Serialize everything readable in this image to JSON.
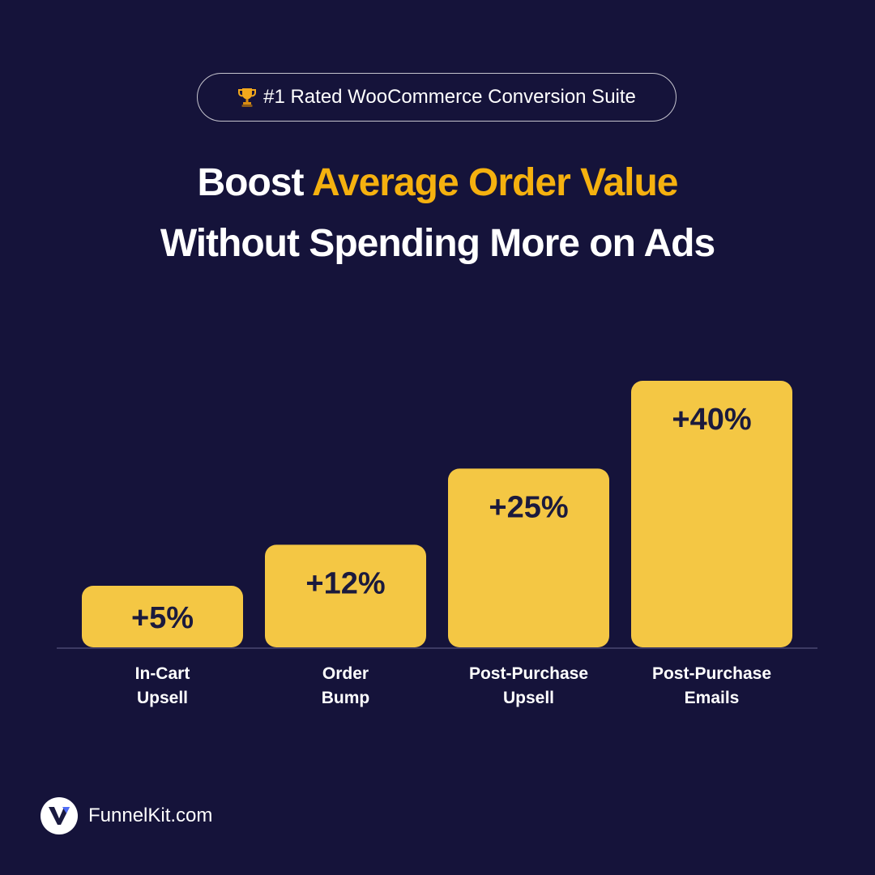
{
  "badge": {
    "icon": "trophy-icon",
    "text": "#1 Rated WooCommerce Conversion Suite"
  },
  "headline": {
    "line1_plain": "Boost ",
    "line1_accent": "Average Order Value",
    "line2": "Without Spending More on Ads"
  },
  "chart_data": {
    "type": "bar",
    "categories": [
      [
        "In-Cart",
        "Upsell"
      ],
      [
        "Order",
        "Bump"
      ],
      [
        "Post-Purchase",
        "Upsell"
      ],
      [
        "Post-Purchase",
        "Emails"
      ]
    ],
    "values": [
      5,
      12,
      25,
      40
    ],
    "data_labels": [
      "+5%",
      "+12%",
      "+25%",
      "+40%"
    ],
    "title": "",
    "xlabel": "",
    "ylabel": "",
    "ylim": [
      0,
      40
    ],
    "grid": false,
    "legend": "none",
    "bar_color": "#f4c744",
    "label_color": "#1b1a3d",
    "axis_color": "#3c3a63"
  },
  "footer": {
    "logo_icon": "funnelkit-logo-icon",
    "text": "FunnelKit.com"
  },
  "colors": {
    "background": "#15133a",
    "accent": "#f5b10f",
    "text": "#ffffff"
  }
}
